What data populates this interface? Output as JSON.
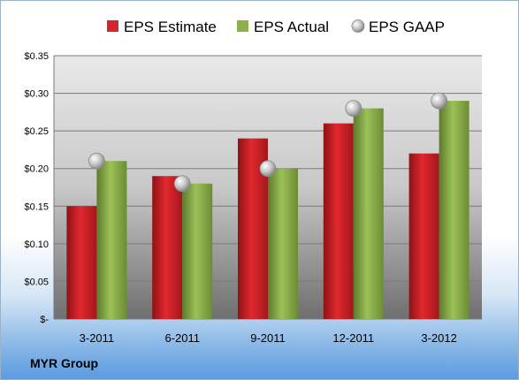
{
  "company": "MYR Group",
  "chart_data": {
    "type": "bar",
    "categories": [
      "3-2011",
      "6-2011",
      "9-2011",
      "12-2011",
      "3-2012"
    ],
    "series": [
      {
        "name": "EPS Estimate",
        "kind": "bar",
        "color": "#cc2127",
        "values": [
          0.15,
          0.19,
          0.24,
          0.26,
          0.22
        ]
      },
      {
        "name": "EPS Actual",
        "kind": "bar",
        "color": "#8cb04a",
        "values": [
          0.21,
          0.18,
          0.2,
          0.28,
          0.29
        ]
      },
      {
        "name": "EPS GAAP",
        "kind": "marker",
        "color": "#b9b9b9",
        "values": [
          0.21,
          0.18,
          0.2,
          0.28,
          0.29
        ]
      }
    ],
    "yticks": [
      "$-",
      "$0.05",
      "$0.10",
      "$0.15",
      "$0.20",
      "$0.25",
      "$0.30",
      "$0.35"
    ],
    "ylim": [
      0,
      0.35
    ],
    "grid": true,
    "legend_position": "top"
  }
}
